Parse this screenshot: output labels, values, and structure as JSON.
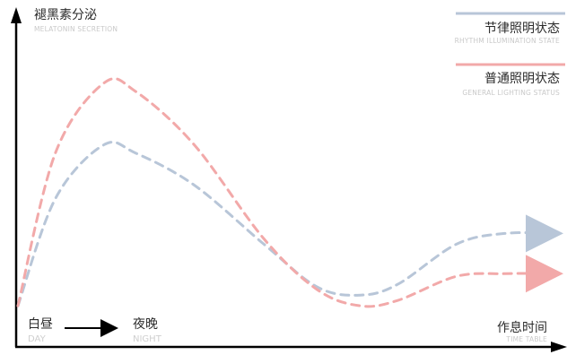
{
  "chart_data": {
    "type": "line",
    "title": "",
    "ylabel": "褪黑素分泌",
    "ylabel_en": "MELATONIN SECRETION",
    "xlabel": "作息时间",
    "xlabel_en": "TIME TABLE",
    "x_markers": [
      {
        "cn": "白昼",
        "en": "DAY"
      },
      {
        "cn": "夜晚",
        "en": "NIGHT"
      }
    ],
    "grid": false,
    "legend_placement": "top-right",
    "series": [
      {
        "name": "节律照明状态",
        "name_en": "RHYTHM ILLUMINATION STATE",
        "color": "#b8c6d8",
        "style": "dashed",
        "points": [
          [
            0,
            0.15
          ],
          [
            0.07,
            0.55
          ],
          [
            0.16,
            0.75
          ],
          [
            0.22,
            0.72
          ],
          [
            0.33,
            0.6
          ],
          [
            0.46,
            0.38
          ],
          [
            0.56,
            0.22
          ],
          [
            0.64,
            0.19
          ],
          [
            0.71,
            0.23
          ],
          [
            0.82,
            0.38
          ],
          [
            0.91,
            0.42
          ],
          [
            1.0,
            0.42
          ]
        ]
      },
      {
        "name": "普通照明状态",
        "name_en": "GENERAL LIGHTING STATUS",
        "color": "#f2a9a9",
        "style": "dashed",
        "points": [
          [
            0,
            0.15
          ],
          [
            0.07,
            0.72
          ],
          [
            0.16,
            0.98
          ],
          [
            0.22,
            0.95
          ],
          [
            0.33,
            0.75
          ],
          [
            0.46,
            0.4
          ],
          [
            0.56,
            0.21
          ],
          [
            0.64,
            0.15
          ],
          [
            0.71,
            0.17
          ],
          [
            0.82,
            0.26
          ],
          [
            0.91,
            0.27
          ],
          [
            1.0,
            0.27
          ]
        ]
      }
    ]
  }
}
